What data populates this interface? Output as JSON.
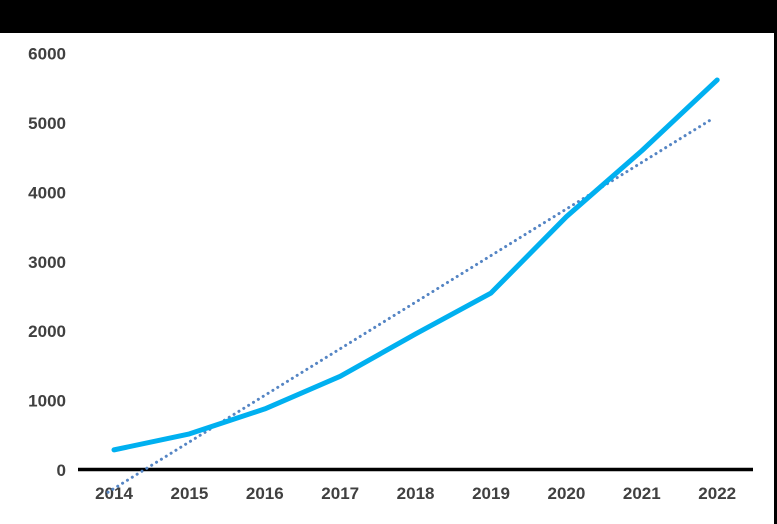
{
  "chart_data": {
    "type": "line",
    "title": "",
    "xlabel": "",
    "ylabel": "",
    "categories": [
      "2014",
      "2015",
      "2016",
      "2017",
      "2018",
      "2019",
      "2020",
      "2021",
      "2022"
    ],
    "series": [
      {
        "name": "main-line",
        "style": "solid",
        "values": [
          290,
          520,
          880,
          1350,
          1960,
          2550,
          3650,
          4600,
          5620
        ]
      },
      {
        "name": "linear-trendline",
        "style": "dotted",
        "start_value": -320,
        "end_value": 5050
      }
    ],
    "y_ticks": [
      0,
      1000,
      2000,
      3000,
      4000,
      5000,
      6000
    ],
    "ylim": [
      0,
      6000
    ],
    "grid": "off",
    "legend": "none",
    "colors": {
      "main_line": "#00b0f0",
      "trendline": "#5585c4",
      "axis_labels": "#404040",
      "axis_line": "#000000",
      "frame_bars": "#000000",
      "background": "#ffffff"
    }
  }
}
